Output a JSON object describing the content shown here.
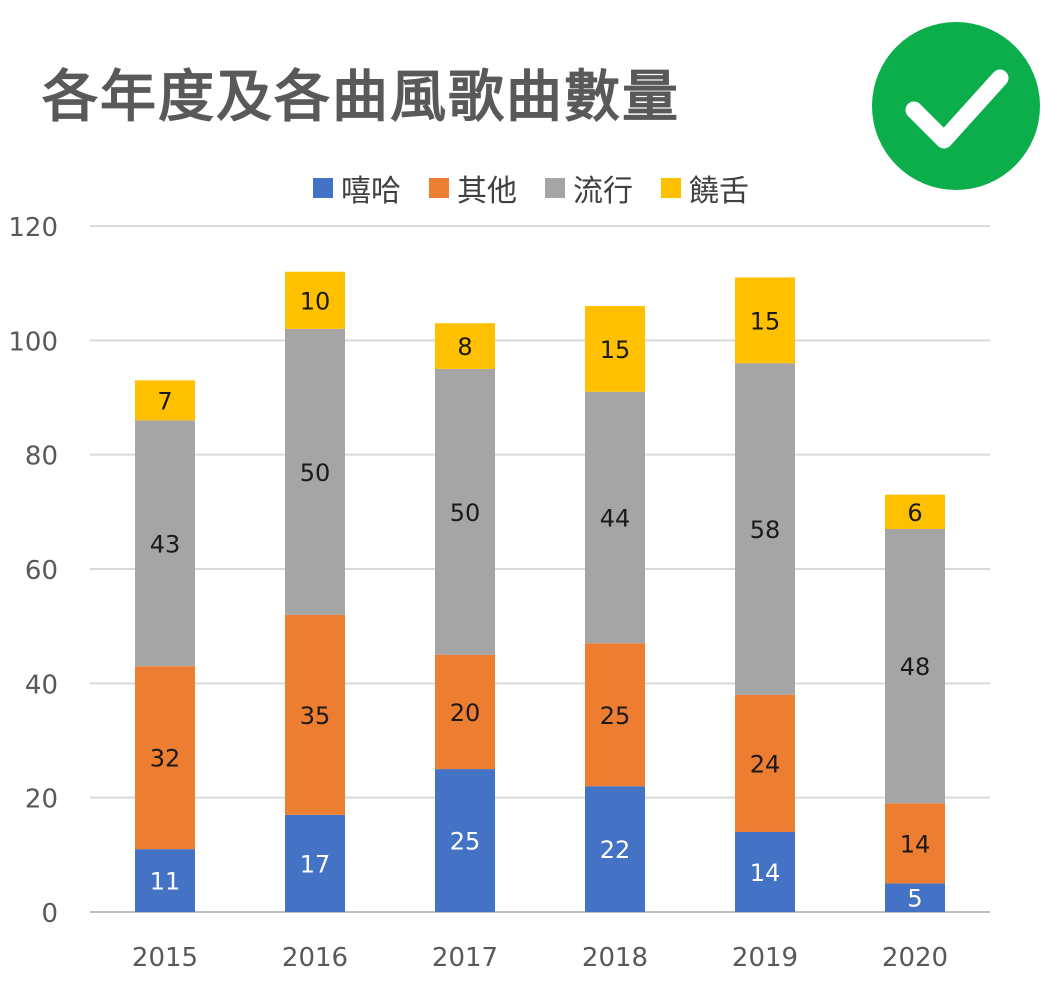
{
  "title": "各年度及各曲風歌曲數量",
  "badge": {
    "icon": "check-icon",
    "color": "#0cae4b"
  },
  "chart_data": {
    "type": "bar",
    "stacked": true,
    "title": "各年度及各曲風歌曲數量",
    "categories": [
      "2015",
      "2016",
      "2017",
      "2018",
      "2019",
      "2020"
    ],
    "series": [
      {
        "name": "嘻哈",
        "color": "#4472c4",
        "values": [
          11,
          17,
          25,
          22,
          14,
          5
        ]
      },
      {
        "name": "其他",
        "color": "#ed7d31",
        "values": [
          32,
          35,
          20,
          25,
          24,
          14
        ]
      },
      {
        "name": "流行",
        "color": "#a5a5a5",
        "values": [
          43,
          50,
          50,
          44,
          58,
          48
        ]
      },
      {
        "name": "饒舌",
        "color": "#ffc000",
        "values": [
          7,
          10,
          8,
          15,
          15,
          6
        ]
      }
    ],
    "ylim": [
      0,
      120
    ],
    "yticks": [
      0,
      20,
      40,
      60,
      80,
      100,
      120
    ],
    "xlabel": "",
    "ylabel": "",
    "grid": true,
    "legend": "top"
  }
}
